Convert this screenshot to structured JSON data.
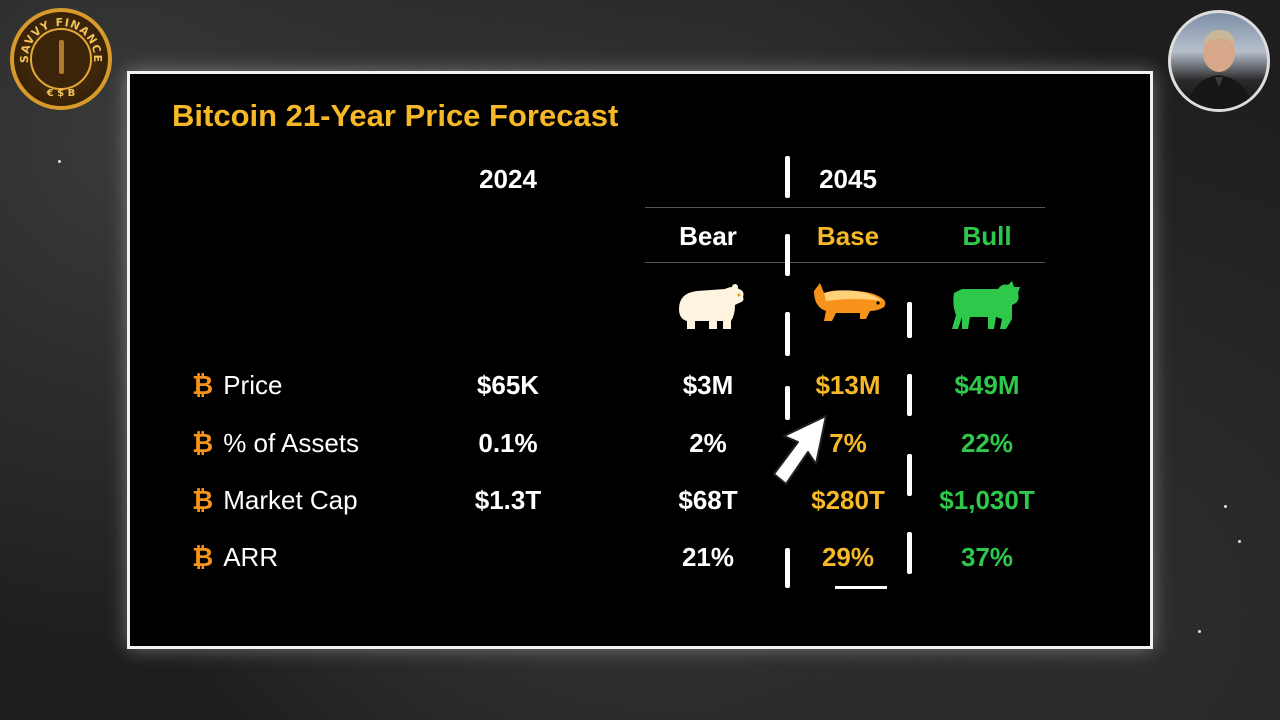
{
  "branding": {
    "logo_text": "SAVVY FINANCE",
    "logo_symbols": "€ $ B"
  },
  "slide": {
    "title": "Bitcoin 21-Year Price Forecast",
    "year_now": "2024",
    "year_future": "2045",
    "scenarios": [
      {
        "label": "Bear",
        "icon": "bear-icon",
        "color": "#ffffff"
      },
      {
        "label": "Base",
        "icon": "honey-badger-icon",
        "color": "#f7b827"
      },
      {
        "label": "Bull",
        "icon": "bull-icon",
        "color": "#2ec84b"
      }
    ],
    "bitcoin_symbol": "₿",
    "rows": [
      {
        "label": "Price",
        "now": "$65K",
        "bear": "$3M",
        "base": "$13M",
        "bull": "$49M"
      },
      {
        "label": "% of Assets",
        "now": "0.1%",
        "bear": "2%",
        "base": "7%",
        "bull": "22%"
      },
      {
        "label": "Market Cap",
        "now": "$1.3T",
        "bear": "$68T",
        "base": "$280T",
        "bull": "$1,030T"
      },
      {
        "label": "ARR",
        "now": "",
        "bear": "21%",
        "base": "29%",
        "bull": "37%"
      }
    ]
  }
}
